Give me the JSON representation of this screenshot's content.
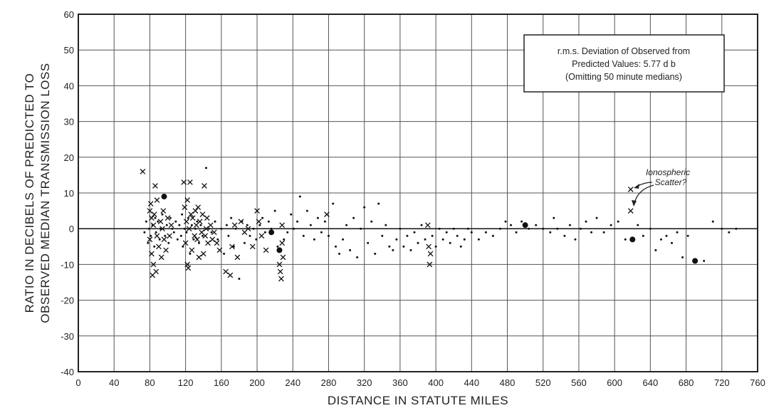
{
  "chart_data": {
    "type": "scatter",
    "xlabel": "DISTANCE IN STATUTE MILES",
    "ylabel_line1": "RATIO IN DECIBELS OF PREDICTED TO",
    "ylabel_line2": "OBSERVED MEDIAN TRANSMISSION LOSS",
    "xlim": [
      0,
      760
    ],
    "ylim": [
      -40,
      60
    ],
    "xticks": [
      0,
      40,
      80,
      120,
      160,
      200,
      240,
      280,
      320,
      360,
      400,
      440,
      480,
      520,
      560,
      600,
      640,
      680,
      720,
      760
    ],
    "yticks": [
      60,
      50,
      40,
      30,
      20,
      10,
      0,
      -10,
      -20,
      -30,
      -40
    ],
    "grid": true,
    "note_box": {
      "line1": "r.m.s. Deviation of Observed from",
      "line2": "Predicted Values: 5.77 d b",
      "line3": "(Omitting 50 minute medians)"
    },
    "annotation": {
      "line1": "Ionospheric",
      "line2": "Scatter?"
    },
    "series": [
      {
        "marker": "x",
        "points": [
          [
            72,
            16
          ],
          [
            80,
            -3
          ],
          [
            80,
            5
          ],
          [
            81,
            7
          ],
          [
            82,
            -7
          ],
          [
            82,
            3
          ],
          [
            83,
            -13
          ],
          [
            84,
            -10
          ],
          [
            84,
            1
          ],
          [
            85,
            4
          ],
          [
            86,
            12
          ],
          [
            87,
            -12
          ],
          [
            88,
            8
          ],
          [
            88,
            -2
          ],
          [
            90,
            -5
          ],
          [
            92,
            2
          ],
          [
            93,
            -8
          ],
          [
            94,
            0
          ],
          [
            95,
            5
          ],
          [
            96,
            -3
          ],
          [
            98,
            -6
          ],
          [
            100,
            3
          ],
          [
            102,
            -2
          ],
          [
            104,
            1
          ],
          [
            118,
            13
          ],
          [
            119,
            6
          ],
          [
            120,
            -4
          ],
          [
            121,
            2
          ],
          [
            122,
            -10
          ],
          [
            122,
            8
          ],
          [
            123,
            -11
          ],
          [
            124,
            0
          ],
          [
            125,
            13
          ],
          [
            126,
            4
          ],
          [
            127,
            -6
          ],
          [
            128,
            3
          ],
          [
            130,
            -2
          ],
          [
            131,
            5
          ],
          [
            132,
            1
          ],
          [
            133,
            -3
          ],
          [
            134,
            6
          ],
          [
            135,
            -8
          ],
          [
            136,
            2
          ],
          [
            138,
            -1
          ],
          [
            139,
            4
          ],
          [
            140,
            -7
          ],
          [
            141,
            12
          ],
          [
            142,
            -2
          ],
          [
            143,
            0
          ],
          [
            144,
            3
          ],
          [
            145,
            -4
          ],
          [
            148,
            1
          ],
          [
            150,
            -3
          ],
          [
            152,
            -1
          ],
          [
            155,
            -4
          ],
          [
            158,
            -6
          ],
          [
            165,
            -12
          ],
          [
            170,
            -13
          ],
          [
            172,
            -5
          ],
          [
            175,
            1
          ],
          [
            178,
            -8
          ],
          [
            182,
            2
          ],
          [
            186,
            -1
          ],
          [
            190,
            0
          ],
          [
            195,
            -5
          ],
          [
            200,
            5
          ],
          [
            202,
            2
          ],
          [
            205,
            -2
          ],
          [
            210,
            -6
          ],
          [
            225,
            -10
          ],
          [
            226,
            -12
          ],
          [
            227,
            -14
          ],
          [
            228,
            -4
          ],
          [
            228,
            1
          ],
          [
            229,
            -8
          ],
          [
            278,
            4
          ],
          [
            391,
            1
          ],
          [
            392,
            -5
          ],
          [
            393,
            -10
          ],
          [
            394,
            -7
          ],
          [
            618,
            11
          ],
          [
            618,
            5
          ]
        ]
      },
      {
        "marker": "dot",
        "points": [
          [
            74,
            -1
          ],
          [
            76,
            2
          ],
          [
            78,
            -4
          ],
          [
            79,
            0
          ],
          [
            81,
            -2
          ],
          [
            83,
            1
          ],
          [
            85,
            -5
          ],
          [
            86,
            3
          ],
          [
            87,
            -1
          ],
          [
            89,
            2
          ],
          [
            91,
            -3
          ],
          [
            92,
            0
          ],
          [
            94,
            4
          ],
          [
            97,
            -2
          ],
          [
            99,
            1
          ],
          [
            101,
            -4
          ],
          [
            103,
            3
          ],
          [
            105,
            0
          ],
          [
            107,
            -1
          ],
          [
            109,
            2
          ],
          [
            111,
            -3
          ],
          [
            113,
            1
          ],
          [
            115,
            -2
          ],
          [
            116,
            4
          ],
          [
            117,
            -5
          ],
          [
            119,
            0
          ],
          [
            121,
            -1
          ],
          [
            123,
            3
          ],
          [
            125,
            -7
          ],
          [
            127,
            1
          ],
          [
            129,
            -3
          ],
          [
            131,
            0
          ],
          [
            133,
            2
          ],
          [
            135,
            -4
          ],
          [
            137,
            1
          ],
          [
            139,
            -2
          ],
          [
            143,
            17
          ],
          [
            146,
            0
          ],
          [
            149,
            -1
          ],
          [
            153,
            2
          ],
          [
            156,
            -3
          ],
          [
            160,
            0
          ],
          [
            163,
            -7
          ],
          [
            166,
            1
          ],
          [
            168,
            -2
          ],
          [
            171,
            3
          ],
          [
            174,
            -5
          ],
          [
            176,
            0
          ],
          [
            180,
            -14
          ],
          [
            183,
            2
          ],
          [
            186,
            -4
          ],
          [
            189,
            1
          ],
          [
            192,
            -2
          ],
          [
            196,
            0
          ],
          [
            199,
            -3
          ],
          [
            203,
            1
          ],
          [
            206,
            3
          ],
          [
            209,
            -1
          ],
          [
            213,
            2
          ],
          [
            216,
            0
          ],
          [
            220,
            5
          ],
          [
            223,
            -5
          ],
          [
            230,
            -3
          ],
          [
            234,
            -1
          ],
          [
            238,
            4
          ],
          [
            241,
            0
          ],
          [
            245,
            2
          ],
          [
            248,
            9
          ],
          [
            252,
            -2
          ],
          [
            256,
            5
          ],
          [
            260,
            1
          ],
          [
            264,
            -3
          ],
          [
            268,
            3
          ],
          [
            272,
            -1
          ],
          [
            276,
            2
          ],
          [
            280,
            -2
          ],
          [
            285,
            7
          ],
          [
            288,
            -5
          ],
          [
            292,
            -7
          ],
          [
            296,
            -3
          ],
          [
            300,
            1
          ],
          [
            304,
            -6
          ],
          [
            308,
            3
          ],
          [
            312,
            -8
          ],
          [
            316,
            0
          ],
          [
            320,
            6
          ],
          [
            324,
            -4
          ],
          [
            328,
            2
          ],
          [
            332,
            -7
          ],
          [
            336,
            7
          ],
          [
            340,
            -2
          ],
          [
            344,
            1
          ],
          [
            348,
            -5
          ],
          [
            352,
            -6
          ],
          [
            356,
            -3
          ],
          [
            360,
            0
          ],
          [
            364,
            -5
          ],
          [
            368,
            -2
          ],
          [
            372,
            -6
          ],
          [
            376,
            -1
          ],
          [
            380,
            -4
          ],
          [
            384,
            1
          ],
          [
            388,
            -3
          ],
          [
            396,
            -2
          ],
          [
            400,
            -5
          ],
          [
            404,
            0
          ],
          [
            408,
            -3
          ],
          [
            412,
            -1
          ],
          [
            416,
            -4
          ],
          [
            420,
            0
          ],
          [
            424,
            -2
          ],
          [
            428,
            -5
          ],
          [
            432,
            -3
          ],
          [
            436,
            0
          ],
          [
            440,
            -1
          ],
          [
            448,
            -3
          ],
          [
            456,
            -1
          ],
          [
            464,
            -2
          ],
          [
            472,
            0
          ],
          [
            478,
            2
          ],
          [
            484,
            1
          ],
          [
            490,
            -1
          ],
          [
            496,
            2
          ],
          [
            504,
            0
          ],
          [
            512,
            1
          ],
          [
            520,
            0
          ],
          [
            528,
            -1
          ],
          [
            532,
            3
          ],
          [
            536,
            0
          ],
          [
            544,
            -2
          ],
          [
            550,
            1
          ],
          [
            556,
            -3
          ],
          [
            562,
            0
          ],
          [
            568,
            2
          ],
          [
            574,
            -1
          ],
          [
            580,
            3
          ],
          [
            588,
            -1
          ],
          [
            596,
            1
          ],
          [
            604,
            2
          ],
          [
            612,
            -3
          ],
          [
            626,
            1
          ],
          [
            632,
            -2
          ],
          [
            640,
            0
          ],
          [
            646,
            -6
          ],
          [
            652,
            -3
          ],
          [
            658,
            -2
          ],
          [
            664,
            -4
          ],
          [
            670,
            -1
          ],
          [
            676,
            -8
          ],
          [
            682,
            -2
          ],
          [
            700,
            -9
          ],
          [
            710,
            2
          ],
          [
            720,
            0
          ],
          [
            728,
            -1
          ],
          [
            736,
            0
          ]
        ]
      },
      {
        "marker": "big-dot",
        "points": [
          [
            96,
            9
          ],
          [
            216,
            -1
          ],
          [
            225,
            -6
          ],
          [
            500,
            1
          ],
          [
            620,
            -3
          ],
          [
            690,
            -9
          ]
        ]
      }
    ]
  }
}
